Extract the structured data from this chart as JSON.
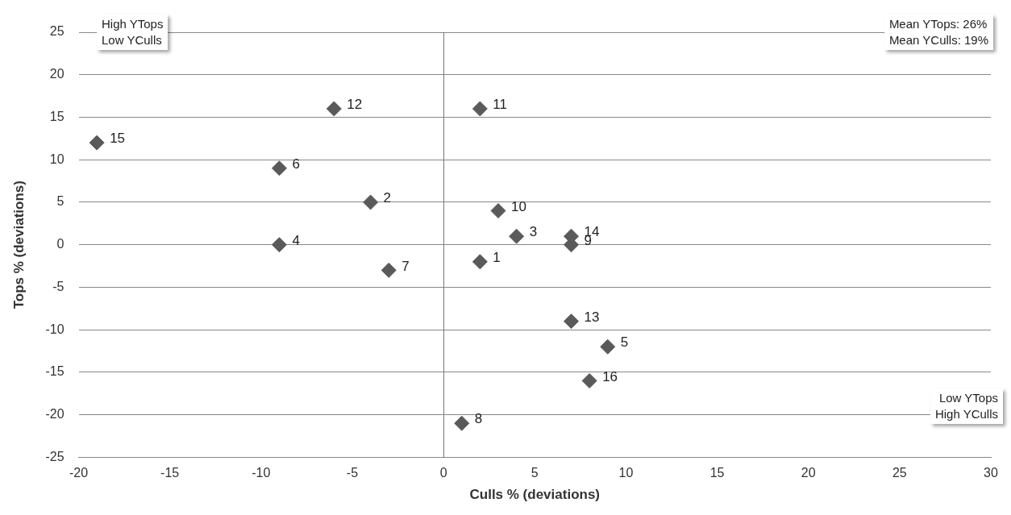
{
  "chart_data": {
    "type": "scatter",
    "xlabel": "Culls % (deviations)",
    "ylabel": "Tops % (deviations)",
    "x": [
      2,
      -4,
      4,
      -9,
      9,
      -9,
      -3,
      1,
      7,
      3,
      2,
      -6,
      7,
      7,
      -19,
      8
    ],
    "values": [
      -2,
      5,
      1,
      0,
      -12,
      9,
      -3,
      -21,
      0,
      4,
      16,
      16,
      -9,
      1,
      12,
      -16
    ],
    "color": "#5a5a5a",
    "marker": "diamond",
    "grid": "y",
    "legend": false,
    "xlim": [
      -20,
      30
    ],
    "xticks": [
      -20,
      -15,
      -10,
      -5,
      0,
      5,
      10,
      15,
      20,
      25,
      30
    ],
    "ylim": [
      -25,
      25
    ],
    "yticks": [
      -25,
      -20,
      -15,
      -10,
      -5,
      0,
      5,
      10,
      15,
      20,
      25
    ],
    "annotations": [
      {
        "text": "1",
        "x": 2,
        "y": -2
      },
      {
        "text": "2",
        "x": -4,
        "y": 5
      },
      {
        "text": "3",
        "x": 4,
        "y": 1
      },
      {
        "text": "4",
        "x": -9,
        "y": 0
      },
      {
        "text": "5",
        "x": 9,
        "y": -12
      },
      {
        "text": "6",
        "x": -9,
        "y": 9
      },
      {
        "text": "7",
        "x": -3,
        "y": -3
      },
      {
        "text": "8",
        "x": 1,
        "y": -21
      },
      {
        "text": "9",
        "x": 7,
        "y": 0
      },
      {
        "text": "10",
        "x": 3,
        "y": 4
      },
      {
        "text": "11",
        "x": 2,
        "y": 16
      },
      {
        "text": "12",
        "x": -6,
        "y": 16
      },
      {
        "text": "13",
        "x": 7,
        "y": -9
      },
      {
        "text": "14",
        "x": 7,
        "y": 1
      },
      {
        "text": "15",
        "x": -19,
        "y": 12
      },
      {
        "text": "16",
        "x": 8,
        "y": -16
      },
      "High YTops\nLow YCulls",
      "Mean YTops: 26%\nMean YCulls: 19%",
      "Low YTops\nHigh YCulls"
    ]
  }
}
